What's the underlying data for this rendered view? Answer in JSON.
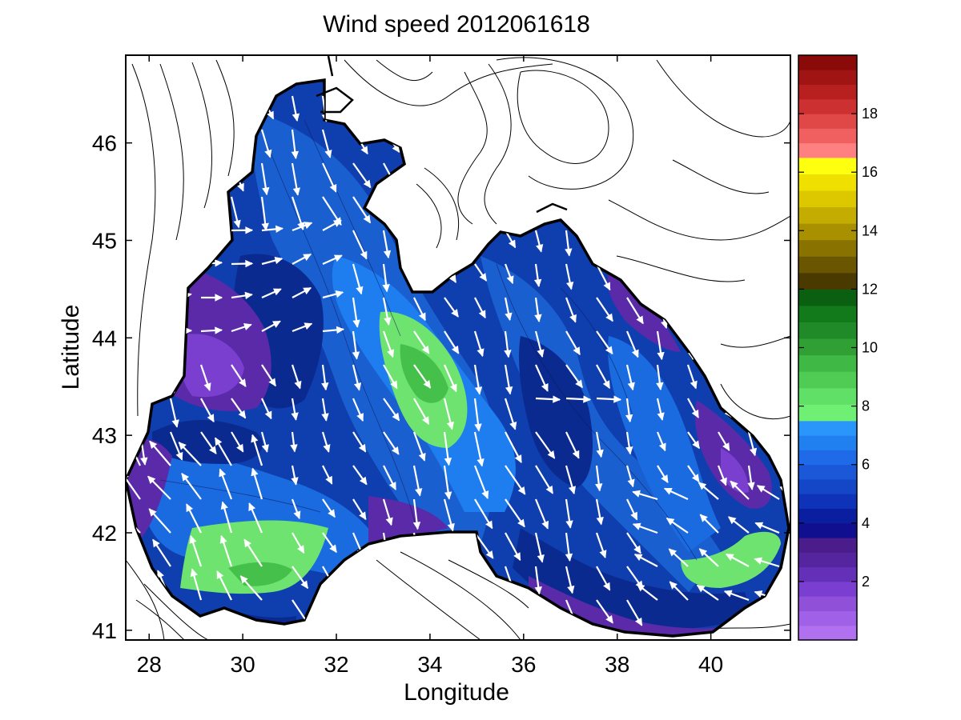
{
  "chart_data": {
    "type": "heatmap",
    "title": "Wind speed 2012061618",
    "xlabel": "Longitude",
    "ylabel": "Latitude",
    "xlim": [
      27.5,
      41.7
    ],
    "ylim": [
      40.9,
      46.9
    ],
    "xticks": [
      "28",
      "30",
      "32",
      "34",
      "36",
      "38",
      "40"
    ],
    "yticks": [
      "41",
      "42",
      "43",
      "44",
      "45",
      "46"
    ],
    "colorbar": {
      "range": [
        0,
        20
      ],
      "ticks": [
        "2",
        "4",
        "6",
        "8",
        "10",
        "12",
        "14",
        "16",
        "18"
      ],
      "bands": [
        {
          "from": 0,
          "to": 3.5,
          "color": "#7a3fd0",
          "label": "purple"
        },
        {
          "from": 3.5,
          "to": 7.5,
          "color": "#1f56c8",
          "label": "blue"
        },
        {
          "from": 7.5,
          "to": 12,
          "color": "#3fcf5a",
          "label": "green"
        },
        {
          "from": 12,
          "to": 16.5,
          "color": "#b0b000",
          "label": "olive-yellow"
        },
        {
          "from": 16.5,
          "to": 20,
          "color": "#e04040",
          "label": "red"
        }
      ]
    },
    "wind_field": {
      "predominant_direction": "north-northwest to south-southeast",
      "range_ms": [
        0,
        9
      ]
    },
    "regions": [
      {
        "name": "central sea maximum",
        "lon": 33.9,
        "lat": 43.5,
        "speed": 8.5
      },
      {
        "name": "southwest maximum",
        "lon": 30.5,
        "lat": 41.7,
        "speed": 8.5
      },
      {
        "name": "southeast maximum",
        "lon": 40.3,
        "lat": 41.6,
        "speed": 7.8
      },
      {
        "name": "western coast minimum",
        "lon": 29.5,
        "lat": 43.9,
        "speed": 1.5
      },
      {
        "name": "eastern center",
        "lon": 37.0,
        "lat": 43.0,
        "speed": 3.8
      }
    ]
  }
}
